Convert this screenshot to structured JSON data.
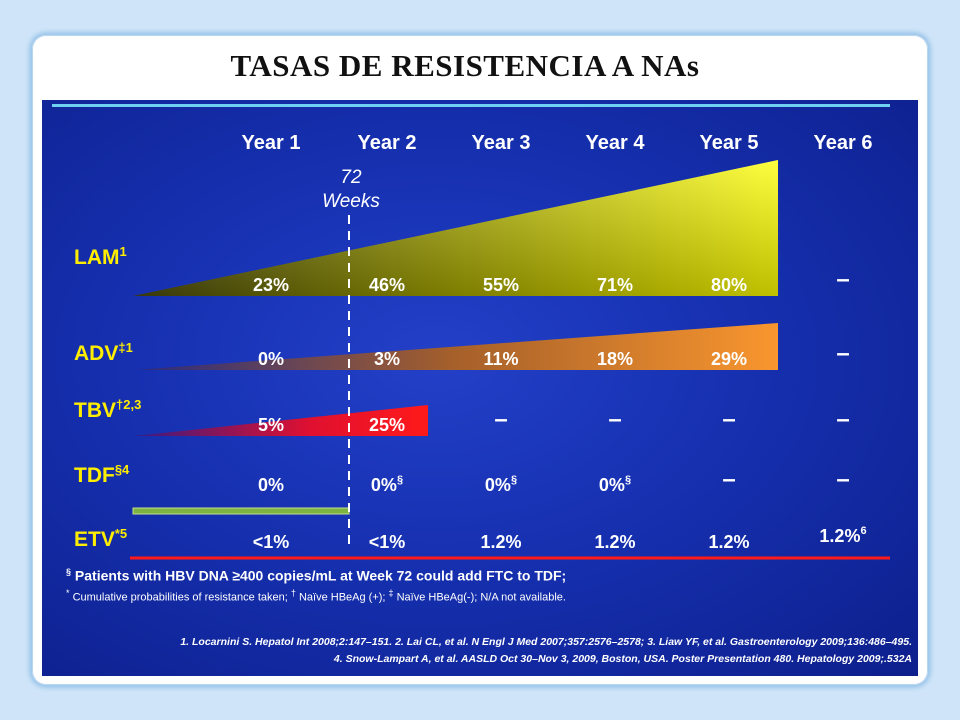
{
  "page": {
    "title": "TASAS DE RESISTENCIA A NAs"
  },
  "colors": {
    "lam": "#f2f200",
    "adv": "#f4912c",
    "tbv": "#ff1a1a",
    "tdf": "#7cb342",
    "etv": "#ff1a1a",
    "divider": "#6fd1f2"
  },
  "chart_data": {
    "type": "table",
    "columns": [
      "Year 1",
      "Year 2",
      "Year 3",
      "Year 4",
      "Year 5",
      "Year 6"
    ],
    "marker": {
      "line1": "72",
      "line2": "Weeks"
    },
    "rows": [
      {
        "drug": "LAM",
        "sup": "1",
        "values": [
          "23%",
          "46%",
          "55%",
          "71%",
          "80%",
          "–"
        ],
        "value_sups": [
          "",
          "",
          "",
          "",
          "",
          ""
        ]
      },
      {
        "drug": "ADV",
        "sup": "‡1",
        "values": [
          "0%",
          "3%",
          "11%",
          "18%",
          "29%",
          "–"
        ],
        "value_sups": [
          "",
          "",
          "",
          "",
          "",
          ""
        ]
      },
      {
        "drug": "TBV",
        "sup": "†2,3",
        "values": [
          "5%",
          "25%",
          "–",
          "–",
          "–",
          "–"
        ],
        "value_sups": [
          "",
          "",
          "",
          "",
          "",
          ""
        ]
      },
      {
        "drug": "TDF",
        "sup": "§4",
        "values": [
          "0%",
          "0%",
          "0%",
          "0%",
          "–",
          "–"
        ],
        "value_sups": [
          "",
          "§",
          "§",
          "§",
          "",
          ""
        ]
      },
      {
        "drug": "ETV",
        "sup": "*5",
        "values": [
          "<1%",
          "<1%",
          "1.2%",
          "1.2%",
          "1.2%",
          "1.2%"
        ],
        "value_sups": [
          "",
          "",
          "",
          "",
          "",
          "6"
        ]
      }
    ]
  },
  "footnotes": {
    "note1_sym": "§",
    "note1": "Patients with HBV DNA ≥400 copies/mL at Week 72 could add FTC to TDF;",
    "note2_sym1": "*",
    "note2_a": "Cumulative probabilities of resistance taken;",
    "note2_sym2": "†",
    "note2_b": "Naïve HBeAg (+);",
    "note2_sym3": "‡",
    "note2_c": "Naïve HBeAg(-); N/A not available."
  },
  "references": {
    "line1": "1. Locarnini S. Hepatol Int 2008;2:147–151. 2. Lai CL, et al. N Engl J Med 2007;357:2576–2578; 3. Liaw YF, et al. Gastroenterology 2009;136:486–495.",
    "line2": "4. Snow-Lampart A, et al. AASLD Oct 30–Nov 3, 2009, Boston, USA. Poster Presentation 480. Hepatology 2009;.532A"
  }
}
